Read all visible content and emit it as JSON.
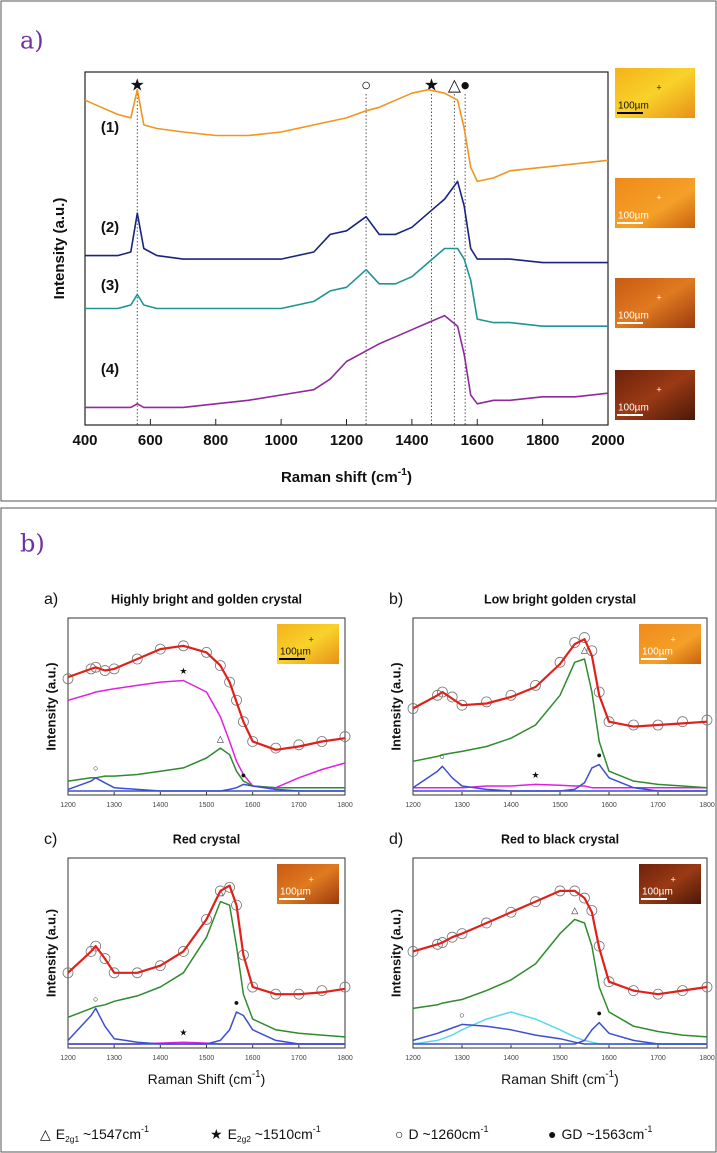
{
  "panel_labels": [
    "a)",
    "b)"
  ],
  "chart_data": [
    {
      "type": "line",
      "y_label": "Intensity  (a.u.)",
      "x_label": [
        "Raman shift (cm",
        "-1",
        ")"
      ],
      "xlim": [
        400,
        2000
      ],
      "xticks": [
        400,
        600,
        800,
        1000,
        1200,
        1400,
        1600,
        1800,
        2000
      ],
      "ylim": [
        0,
        100
      ],
      "x": [
        400,
        450,
        500,
        540,
        560,
        580,
        620,
        700,
        800,
        900,
        1000,
        1100,
        1150,
        1200,
        1260,
        1300,
        1350,
        1400,
        1450,
        1500,
        1540,
        1560,
        1580,
        1600,
        1650,
        1700,
        1800,
        1900,
        2000
      ],
      "series": [
        {
          "name": "(1)",
          "color": "#f0961e",
          "values": [
            92,
            90,
            88,
            87,
            95,
            85,
            84,
            83,
            82,
            82,
            83,
            85,
            86,
            87,
            89,
            90,
            92,
            94,
            95,
            94,
            92,
            84,
            73,
            69,
            70,
            72,
            73,
            74,
            75
          ]
        },
        {
          "name": "(2)",
          "color": "#1a237e",
          "values": [
            48,
            48,
            48,
            49,
            60,
            50,
            48,
            47,
            47,
            47,
            47,
            49,
            54,
            55,
            59,
            54,
            54,
            56,
            60,
            64,
            69,
            62,
            50,
            47,
            47,
            47,
            46,
            46,
            46
          ]
        },
        {
          "name": "(3)",
          "color": "#1e9494",
          "values": [
            33,
            33,
            33,
            34,
            37,
            34,
            33,
            33,
            33,
            33,
            33,
            35,
            38,
            39,
            44,
            40,
            40,
            42,
            46,
            50,
            50,
            47,
            41,
            30,
            29,
            29,
            28,
            28,
            28
          ]
        },
        {
          "name": "(4)",
          "color": "#8e2a9a",
          "values": [
            5,
            5,
            5,
            5,
            6,
            5,
            5,
            5,
            6,
            7,
            8.5,
            10,
            13,
            18,
            21,
            23,
            25,
            27,
            29,
            31,
            28,
            20,
            8.5,
            6,
            7,
            7,
            8,
            8,
            9
          ]
        }
      ],
      "peaks": [
        {
          "symbol": "★",
          "x": 560
        },
        {
          "symbol": "○",
          "x": 1260
        },
        {
          "symbol": "★",
          "x": 1460
        },
        {
          "symbol": "△",
          "x": 1530
        },
        {
          "symbol": "●",
          "x": 1563
        }
      ],
      "insets": [
        "100µm",
        "100µm",
        "100µm",
        "100µm"
      ]
    },
    {
      "type": "fit",
      "panel": "a)",
      "title": "Highly bright and golden crystal",
      "y_label": "Intensity (a.u.)",
      "xlim": [
        1200,
        1800
      ],
      "xticks": [
        1200,
        1300,
        1400,
        1500,
        1600,
        1700,
        1800
      ],
      "ylim": [
        0,
        100
      ],
      "x": [
        1200,
        1250,
        1260,
        1280,
        1300,
        1350,
        1400,
        1450,
        1500,
        1530,
        1550,
        1565,
        1580,
        1600,
        1650,
        1700,
        1750,
        1800
      ],
      "series": [
        {
          "style": "circles",
          "color": "#777777",
          "values": [
            68,
            74,
            75,
            73,
            74,
            80,
            86,
            88,
            84,
            76,
            66,
            55,
            42,
            30,
            26,
            28,
            30,
            33
          ]
        },
        {
          "color": "#e0201b",
          "values": [
            69,
            74,
            75,
            73,
            74,
            80,
            86,
            88,
            84,
            76,
            66,
            54,
            42,
            30,
            25,
            27,
            30,
            32
          ]
        },
        {
          "color": "#e020e0",
          "peak_symbol": "★",
          "values": [
            55,
            59,
            60,
            61,
            62,
            64,
            66,
            67,
            60,
            45,
            30,
            18,
            10,
            3,
            2,
            8,
            13,
            17
          ]
        },
        {
          "color": "#2e8b2e",
          "peak_symbol": "△",
          "values": [
            6,
            8,
            8,
            9,
            9,
            10,
            12,
            14,
            20,
            26,
            22,
            12,
            6,
            3,
            2,
            2,
            2,
            2
          ]
        },
        {
          "color": "#3b4fd0",
          "peak_symbol": "○",
          "values": [
            1,
            6,
            8,
            5,
            2,
            1,
            0,
            0,
            0,
            0,
            0,
            0,
            0,
            0,
            0,
            0,
            0,
            0
          ]
        },
        {
          "color": "#3b4fd0",
          "peak_symbol": "●",
          "values": [
            0,
            0,
            0,
            0,
            0,
            0,
            0,
            0,
            0,
            0,
            1,
            2,
            4,
            3,
            1,
            0,
            0,
            0
          ]
        }
      ],
      "inset": "100µm"
    },
    {
      "type": "fit",
      "panel": "b)",
      "title": "Low bright golden crystal",
      "y_label": "Intensity (a.u.)",
      "xlim": [
        1200,
        1800
      ],
      "xticks": [
        1200,
        1300,
        1400,
        1500,
        1600,
        1700,
        1800
      ],
      "ylim": [
        0,
        100
      ],
      "x": [
        1200,
        1250,
        1260,
        1280,
        1300,
        1350,
        1400,
        1450,
        1500,
        1530,
        1550,
        1565,
        1580,
        1600,
        1650,
        1700,
        1750,
        1800
      ],
      "series": [
        {
          "style": "circles",
          "color": "#777777",
          "values": [
            50,
            58,
            60,
            57,
            52,
            54,
            58,
            64,
            78,
            90,
            93,
            85,
            60,
            42,
            40,
            40,
            42,
            43
          ]
        },
        {
          "color": "#e0201b",
          "values": [
            50,
            58,
            60,
            56,
            52,
            53,
            57,
            63,
            77,
            89,
            92,
            82,
            58,
            42,
            39,
            40,
            41,
            42
          ]
        },
        {
          "color": "#e020e0",
          "peak_symbol": "★",
          "values": [
            2,
            2,
            2,
            2,
            2,
            3,
            3,
            4,
            3.5,
            3,
            3,
            2,
            2,
            2,
            2,
            2,
            2,
            2
          ]
        },
        {
          "color": "#2e8b2e",
          "peak_symbol": "△",
          "values": [
            18,
            21,
            22,
            23,
            24,
            27,
            32,
            40,
            58,
            78,
            80,
            60,
            30,
            12,
            6,
            4,
            3,
            2
          ]
        },
        {
          "color": "#3b4fd0",
          "peak_symbol": "○",
          "values": [
            2,
            12,
            15,
            8,
            3,
            1,
            0,
            0,
            0,
            0,
            0,
            0,
            0,
            0,
            0,
            0,
            0,
            0
          ]
        },
        {
          "color": "#3b4fd0",
          "peak_symbol": "●",
          "values": [
            0,
            0,
            0,
            0,
            0,
            0,
            0,
            0,
            0,
            1,
            5,
            14,
            16,
            8,
            2,
            0,
            0,
            0
          ]
        }
      ],
      "inset": "100µm"
    },
    {
      "type": "fit",
      "panel": "c)",
      "title": "Red crystal",
      "y_label": "Intensity (a.u.)",
      "x_label": [
        "Raman Shift (cm",
        "-1",
        ")"
      ],
      "xlim": [
        1200,
        1800
      ],
      "xticks": [
        1200,
        1300,
        1400,
        1500,
        1600,
        1700,
        1800
      ],
      "ylim": [
        0,
        100
      ],
      "x": [
        1200,
        1250,
        1260,
        1280,
        1300,
        1350,
        1400,
        1450,
        1500,
        1530,
        1550,
        1565,
        1580,
        1600,
        1650,
        1700,
        1750,
        1800
      ],
      "series": [
        {
          "style": "circles",
          "color": "#777777",
          "values": [
            40,
            52,
            55,
            48,
            40,
            40,
            44,
            52,
            70,
            86,
            88,
            78,
            50,
            32,
            28,
            28,
            30,
            32
          ]
        },
        {
          "color": "#e0201b",
          "values": [
            40,
            52,
            55,
            48,
            40,
            40,
            44,
            52,
            70,
            86,
            89,
            78,
            50,
            32,
            28,
            28,
            29,
            31
          ]
        },
        {
          "color": "#e020e0",
          "peak_symbol": "★",
          "values": [
            0,
            0,
            0,
            0,
            0,
            0,
            0.5,
            1,
            0.5,
            0,
            0,
            0,
            0,
            0,
            0,
            0,
            0,
            0
          ]
        },
        {
          "color": "#2e8b2e",
          "peak_symbol": "△",
          "values": [
            15,
            20,
            21,
            22,
            24,
            27,
            32,
            40,
            60,
            80,
            78,
            55,
            28,
            14,
            8,
            6,
            5,
            4
          ]
        },
        {
          "color": "#3b4fd0",
          "peak_symbol": "○",
          "values": [
            2,
            16,
            20,
            10,
            3,
            1,
            0,
            0,
            0,
            0,
            0,
            0,
            0,
            0,
            0,
            0,
            0,
            0
          ]
        },
        {
          "color": "#3b4fd0",
          "peak_symbol": "●",
          "values": [
            0,
            0,
            0,
            0,
            0,
            0,
            0,
            0,
            0,
            2,
            8,
            18,
            16,
            8,
            2,
            0,
            0,
            0
          ]
        }
      ],
      "inset": "100µm"
    },
    {
      "type": "fit",
      "panel": "d)",
      "title": "Red to black crystal",
      "y_label": "Intensity (a.u.)",
      "x_label": [
        "Raman Shift (cm",
        "-1",
        ")"
      ],
      "xlim": [
        1200,
        1800
      ],
      "xticks": [
        1200,
        1300,
        1400,
        1500,
        1600,
        1700,
        1800
      ],
      "ylim": [
        0,
        100
      ],
      "x": [
        1200,
        1250,
        1260,
        1280,
        1300,
        1350,
        1400,
        1450,
        1500,
        1530,
        1550,
        1565,
        1580,
        1600,
        1650,
        1700,
        1750,
        1800
      ],
      "series": [
        {
          "style": "circles",
          "color": "#777777",
          "values": [
            52,
            56,
            57,
            60,
            62,
            68,
            74,
            80,
            86,
            86,
            82,
            75,
            55,
            35,
            30,
            28,
            30,
            32
          ]
        },
        {
          "color": "#e0201b",
          "values": [
            52,
            56,
            57,
            60,
            62,
            68,
            74,
            80,
            86,
            86,
            82,
            74,
            54,
            35,
            30,
            28,
            30,
            32
          ]
        },
        {
          "color": "#5ad8ec",
          "values": [
            0,
            2,
            3,
            5,
            8,
            14,
            18,
            14,
            8,
            4,
            2,
            1,
            0,
            0,
            0,
            0,
            0,
            0
          ]
        },
        {
          "color": "#2e8b2e",
          "peak_symbol": "△",
          "values": [
            20,
            22,
            23,
            24,
            25,
            30,
            36,
            45,
            62,
            70,
            68,
            55,
            32,
            18,
            10,
            7,
            5,
            4
          ]
        },
        {
          "color": "#3b4fd0",
          "peak_symbol": "○",
          "values": [
            2,
            6,
            7,
            9,
            11,
            10,
            8,
            5,
            3,
            1,
            0,
            0,
            0,
            0,
            0,
            0,
            0,
            0
          ]
        },
        {
          "color": "#3b4fd0",
          "peak_symbol": "●",
          "values": [
            0,
            0,
            0,
            0,
            0,
            0,
            0,
            0,
            0,
            0,
            2,
            8,
            12,
            6,
            2,
            0,
            0,
            0
          ]
        }
      ],
      "inset": "100µm"
    }
  ],
  "legend": [
    {
      "symbol": "△",
      "text": "E",
      "sub": "2g1",
      "value": " ~1547cm",
      "sup": "-1"
    },
    {
      "symbol": "★",
      "text": "E",
      "sub": "2g2",
      "value": " ~1510cm",
      "sup": "-1"
    },
    {
      "symbol": "○",
      "text": "D ~1260cm",
      "sup": "-1"
    },
    {
      "symbol": "●",
      "text": "GD ~1563cm",
      "sup": "-1"
    }
  ]
}
